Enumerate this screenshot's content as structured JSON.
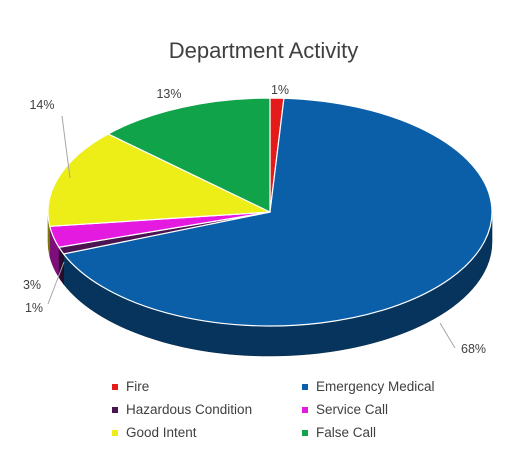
{
  "chart_data": {
    "type": "pie",
    "title": "Department Activity",
    "slices": [
      {
        "label": "Fire",
        "value": 1,
        "display": "1%",
        "color": "#E41B1B"
      },
      {
        "label": "Emergency Medical",
        "value": 68,
        "display": "68%",
        "color": "#0A5FA8"
      },
      {
        "label": "Hazardous Condition",
        "value": 1,
        "display": "1%",
        "color": "#4A1451"
      },
      {
        "label": "Service Call",
        "value": 3,
        "display": "3%",
        "color": "#E51AE0"
      },
      {
        "label": "Good Intent",
        "value": 14,
        "display": "14%",
        "color": "#EDED17"
      },
      {
        "label": "False Call",
        "value": 13,
        "display": "13%",
        "color": "#11A34A"
      }
    ],
    "legend_position": "bottom",
    "style": "3d-pie"
  }
}
